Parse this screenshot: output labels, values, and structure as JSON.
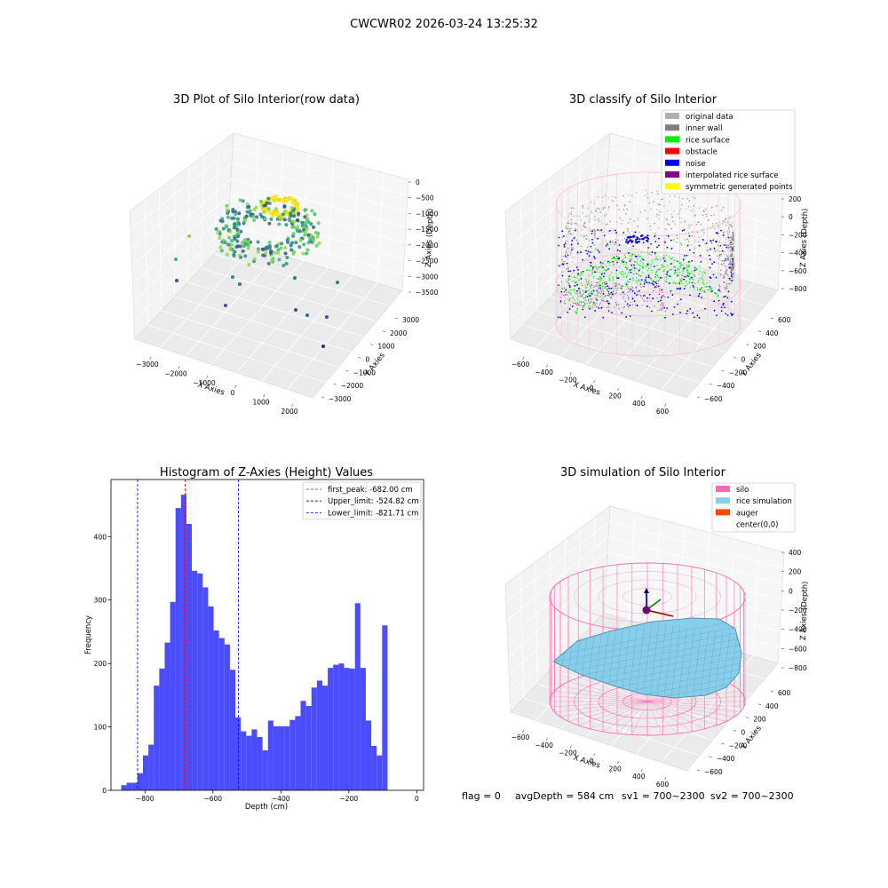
{
  "suptitle": "CWCWR02 2026-03-24 13:25:32",
  "footer": {
    "flag": "flag = 0",
    "avg": "avgDepth = 584 cm",
    "sv1": "sv1 = 700~2300",
    "sv2": "sv2 = 700~2300"
  },
  "colors": {
    "hist_bar": "#4c4cff",
    "peak_line": "#ff0000",
    "limit_line": "#0000cc",
    "silo": "#ff69b4",
    "rice_sim": "#87ceeb",
    "auger": "#ff4500"
  },
  "chart_data": [
    {
      "type": "scatter",
      "title": "3D Plot of Silo Interior(row data)",
      "xlabel": "X Axies",
      "ylabel": "Y Axies",
      "zlabel": "Z Axies (Depth)",
      "x_ticks": [
        "−3000",
        "−2000",
        "−1000",
        "0",
        "1000",
        "2000"
      ],
      "y_ticks": [
        "−3000",
        "−2000",
        "−1000",
        "0",
        "1000",
        "2000",
        "3000"
      ],
      "z_ticks": [
        "0",
        "−500",
        "−1000",
        "−1500",
        "−2000",
        "−2500",
        "−3000",
        "−3500"
      ]
    },
    {
      "type": "scatter",
      "title": "3D classify of Silo Interior",
      "xlabel": "X Axies",
      "ylabel": "Y Axies",
      "zlabel": "Z Axies (Depth)",
      "x_ticks": [
        "−600",
        "−400",
        "−200",
        "0",
        "200",
        "400",
        "600"
      ],
      "y_ticks": [
        "−600",
        "−400",
        "−200",
        "0",
        "200",
        "400",
        "600"
      ],
      "z_ticks": [
        "200",
        "0",
        "−200",
        "−400",
        "−600",
        "−800"
      ],
      "legend_position": "top-right",
      "legend": [
        {
          "label": "original data",
          "color": "#b0b0b0"
        },
        {
          "label": "inner wall",
          "color": "#808080"
        },
        {
          "label": "rice surface",
          "color": "#00ee00"
        },
        {
          "label": "obstacle",
          "color": "#ff0000"
        },
        {
          "label": "noise",
          "color": "#0000ee"
        },
        {
          "label": "interpolated rice surface",
          "color": "#800080"
        },
        {
          "label": "symmetric generated points",
          "color": "#ffff00"
        }
      ]
    },
    {
      "type": "bar",
      "title": "Histogram of Z-Axies (Height) Values",
      "xlabel": "Depth (cm)",
      "ylabel": "Frequency",
      "xlim": [
        -900,
        20
      ],
      "ylim": [
        0,
        490
      ],
      "x_ticks": [
        -800,
        -600,
        -400,
        -200,
        0
      ],
      "y_ticks": [
        0,
        100,
        200,
        300,
        400
      ],
      "bin_start": -870,
      "bin_width": 16,
      "values": [
        8,
        12,
        12,
        27,
        55,
        72,
        165,
        192,
        233,
        297,
        445,
        466,
        420,
        346,
        342,
        320,
        290,
        252,
        240,
        230,
        190,
        115,
        93,
        86,
        96,
        84,
        63,
        110,
        101,
        101,
        101,
        111,
        117,
        141,
        133,
        162,
        173,
        165,
        193,
        198,
        200,
        193,
        192,
        295,
        193,
        110,
        70,
        55,
        260
      ],
      "lines": [
        {
          "label": "first_peak: -682.00 cm",
          "x": -682.0,
          "color": "#ff0000"
        },
        {
          "label": "Upper_limit: -524.82 cm",
          "x": -524.82,
          "color": "#0000cc"
        },
        {
          "label": "Lower_limit: -821.71 cm",
          "x": -821.71,
          "color": "#0000cc"
        }
      ],
      "legend_position": "top-right"
    },
    {
      "type": "area",
      "title": "3D simulation of Silo Interior",
      "xlabel": "X Axies",
      "ylabel": "Y Axies",
      "zlabel": "Z Axies (Depth)",
      "x_ticks": [
        "−600",
        "−400",
        "−200",
        "0",
        "200",
        "400",
        "600"
      ],
      "y_ticks": [
        "−600",
        "−400",
        "−200",
        "0",
        "200",
        "400",
        "600"
      ],
      "z_ticks": [
        "400",
        "200",
        "0",
        "−200",
        "−400",
        "−600",
        "−800"
      ],
      "legend_position": "top-right",
      "legend": [
        {
          "label": "silo",
          "color": "#ff69b4"
        },
        {
          "label": "rice simulation",
          "color": "#87ceeb"
        },
        {
          "label": "auger",
          "color": "#ff4500"
        },
        {
          "label": "center(0,0)",
          "color": ""
        }
      ]
    }
  ]
}
